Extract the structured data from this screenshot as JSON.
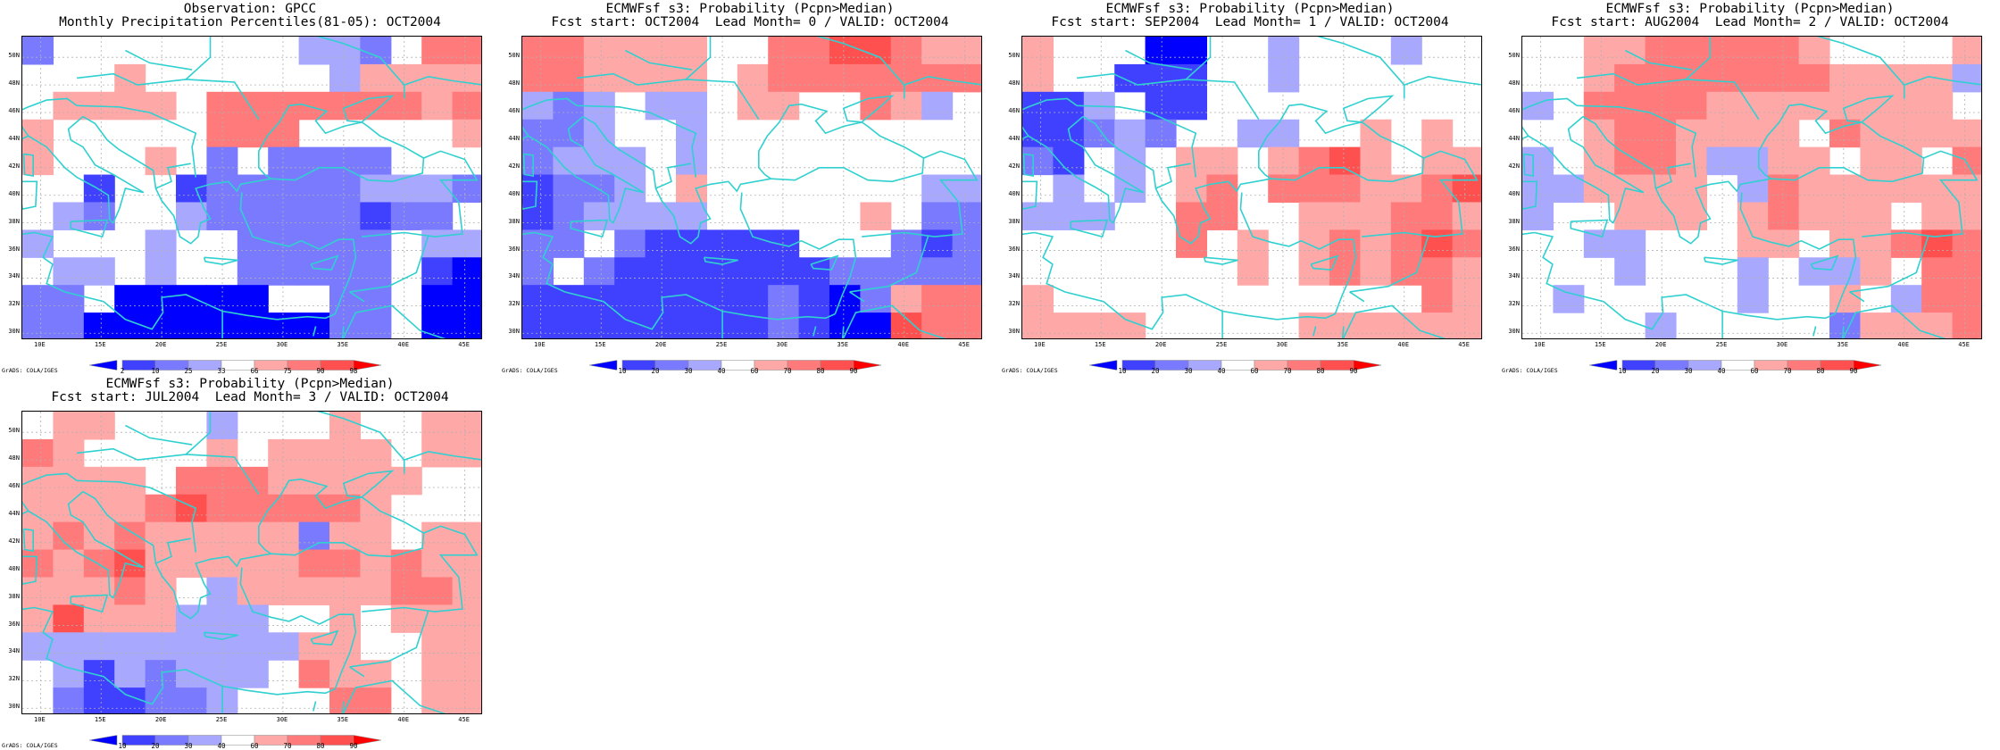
{
  "credit": "GrADS: COLA/IGES",
  "x_ticks": [
    "10E",
    "15E",
    "20E",
    "25E",
    "30E",
    "35E",
    "40E",
    "45E"
  ],
  "y_ticks": [
    "30N",
    "32N",
    "34N",
    "36N",
    "38N",
    "40N",
    "42N",
    "44N",
    "46N",
    "48N",
    "50N"
  ],
  "colors": {
    "blues": [
      "#0000ff",
      "#4040ff",
      "#7a7aff",
      "#a8a8ff"
    ],
    "reds": [
      "#ffa8a8",
      "#ff7a7a",
      "#ff5050",
      "#ff0000"
    ],
    "coast": "#30d0d0",
    "grid": "#b0b0b0"
  },
  "obs_scale": {
    "labels": [
      "2",
      "10",
      "25",
      "33",
      "66",
      "75",
      "90",
      "98"
    ]
  },
  "prob_scale": {
    "labels": [
      "10",
      "20",
      "30",
      "40",
      "60",
      "70",
      "80",
      "90"
    ]
  },
  "panels": [
    {
      "title1": "Observation: GPCC",
      "title2": "Monthly Precipitation Percentiles(81-05): OCT2004",
      "scale": "obs",
      "grid": [
        "b2.....r1.........b1b1b2..r2r2",
        "......r1............b1r1r1r1r1",
        "..r1r1r1r1..r2r2r2r2r2r2r2r1r2",
        "r1..........r2r2r2..........r1",
        "r1......r1..b2..b2b2b2b2......",
        "....b3....b3b2b2b2b2b2b1b1b1b2",
        "..b1b2....b1b2b2b2b2b2b3b2b2..",
        "b1......b1....b2b2b2b2b2..b1b1",
        "..b1b1..b1....b2b2b2b2b2..b3b4",
        "b2b2..b4b4b4b4b4....b2b2..b4b4",
        "b2b2b4b4b4b4b4b4b4b4b2b2..b4b4"
      ]
    },
    {
      "title1": "ECMWFsf s3: Probability (Pcpn>Median)",
      "title2": "Fcst start: OCT2004  Lead Month= 0 / VALID: OCT2004",
      "scale": "prob",
      "grid": [
        "r2r2r1r1r1r1....r2r2r3r3r2r1r1",
        "r2r2r1r1r1r1..r1r2r2r2r2r2r2r2",
        "b1b2b1..b1b1..r1r1....r2r1b1..",
        "b2b2b1....b1..................",
        "b2b1b1b1..b1..................",
        "b3b2b2b1..r1..............b1b1",
        "b3b2b1b1b1b1..........r1..b2b2",
        "b2b2..b2b3b3b3b3b3......b2b3b2",
        "b2..b2b3b3b3b3b3b3b3b2b2b2b2b2",
        "b3b3b3b3b3b3b3b3b2b3b4b2r1r2r2",
        "b3b3b3b3b3b3b3b3b2b3b4b4r3r2r2"
      ]
    },
    {
      "title1": "ECMWFsf s3: Probability (Pcpn>Median)",
      "title2": "Fcst start: SEP2004  Lead Month= 1 / VALID: OCT2004",
      "scale": "prob",
      "grid": [
        "r1......b4b4....b1......b1....",
        "r1....b3b3b3....b1............",
        "b3b3b1..b3b3..................",
        "b3b3b2b1b2....b1b1....r1..r1..",
        "b2b3..b1..r1r1..r1r2r3r1..r1r1",
        "..b1..b1..r1r2..r2r2r2r1r1r2r3",
        "b1b1b1....r2r2....r1r1r1r2r2r1",
        "..........r2..r1..r1r2r1r2r3r2",
        "..............r1..r1r2r1r2r2r1",
        "r1........................r2r1",
        "r1r1r1r1..........r1r1r1r1r1r1"
      ]
    },
    {
      "title1": "ECMWFsf s3: Probability (Pcpn>Median)",
      "title2": "Fcst start: AUG2004  Lead Month= 2 / VALID: OCT2004",
      "scale": "prob",
      "grid": [
        "....r1r1r2r2r2r2r2r1........r1",
        "....r1r2r2r2r2r2r2r2r1r1r1r1b1",
        "b1..r2r2r2r2r1r1r1r1r1r1r1r1..",
        "....r1r2r2r1r1r1r1..r2r1r1r1r1",
        "b1..r1r2r2r1b1b1r1r1..r1r1..r2",
        "b1b1r1r1r1r1..b1r2r1r1r1r1r1r1",
        "b1....r1r1r1..r1r2r1r1r1..r1r1",
        "....b1b1......r1r1..r1r1r2r3r2",
        "......b1......b1..b1b1r1..r2r2",
        "..b1..........b1....r1..b1r2r2",
        "........b1..........b2r1r1r1r2"
      ]
    },
    {
      "title1": "ECMWFsf s3: Probability (Pcpn>Median)",
      "title2": "Fcst start: JUL2004  Lead Month= 3 / VALID: OCT2004",
      "scale": "prob",
      "grid": [
        "..r1r1......b1......r1....r1r1",
        "r2r1........r1..r1r1r1r1..r1r1",
        "r1r1r1r1..r2r2r2r1r1r1r1r1....",
        "r1r1r1r1r2r3r2r2r2r2r2r1......",
        "r1r2r1r2r1r1r1r1r1b2r1r1..r1r1",
        "r2r1r2r3r1r1r1r1r1r2r2r1r2r1r1",
        "r1r1r1r2r1..b1r1r1r1r1r1r2r2r1",
        "r1r3r1r1r1b1b1b1....r1..r1r1r1",
        "b1b1b1b1b1b1b1b1b1r1r1....r1r1",
        "..b1b3b1b2b1b1b1..r2r1r1..r1r1",
        "..b2b3b3b2b2b1......r2r2..r1r1"
      ]
    }
  ]
}
